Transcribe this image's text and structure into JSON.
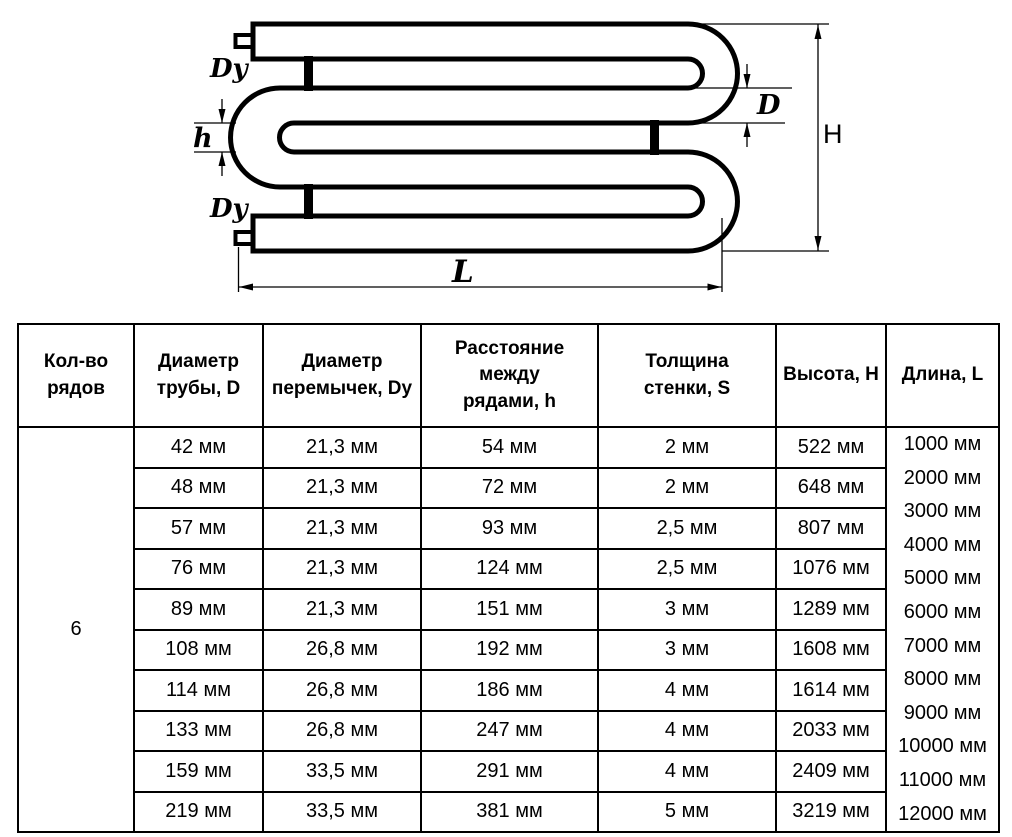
{
  "diagram": {
    "labels": {
      "jumper_top": "Dy",
      "jumper_bottom": "Dy",
      "pipe_diameter": "D",
      "row_spacing": "h",
      "height": "H",
      "length": "L"
    }
  },
  "table": {
    "headers": [
      "Кол-во\nрядов",
      "Диаметр\nтрубы, D",
      "Диаметр\nперемычек, Dy",
      "Расстояние между\nрядами, h",
      "Толщина\nстенки, S",
      "Высота, H",
      "Длина, L"
    ],
    "row_count": "6",
    "rows": [
      [
        "42 мм",
        "21,3 мм",
        "54 мм",
        "2 мм",
        "522 мм"
      ],
      [
        "48 мм",
        "21,3 мм",
        "72 мм",
        "2 мм",
        "648 мм"
      ],
      [
        "57 мм",
        "21,3 мм",
        "93 мм",
        "2,5 мм",
        "807 мм"
      ],
      [
        "76 мм",
        "21,3 мм",
        "124 мм",
        "2,5 мм",
        "1076 мм"
      ],
      [
        "89 мм",
        "21,3 мм",
        "151 мм",
        "3 мм",
        "1289 мм"
      ],
      [
        "108 мм",
        "26,8 мм",
        "192 мм",
        "3 мм",
        "1608 мм"
      ],
      [
        "114 мм",
        "26,8 мм",
        "186 мм",
        "4 мм",
        "1614 мм"
      ],
      [
        "133 мм",
        "26,8 мм",
        "247 мм",
        "4 мм",
        "2033 мм"
      ],
      [
        "159 мм",
        "33,5 мм",
        "291 мм",
        "4 мм",
        "2409 мм"
      ],
      [
        "219 мм",
        "33,5 мм",
        "381 мм",
        "5 мм",
        "3219 мм"
      ]
    ],
    "lengths": [
      "1000 мм",
      "2000 мм",
      "3000 мм",
      "4000 мм",
      "5000 мм",
      "6000 мм",
      "7000 мм",
      "8000 мм",
      "9000 мм",
      "10000 мм",
      "11000 мм",
      "12000 мм"
    ]
  }
}
